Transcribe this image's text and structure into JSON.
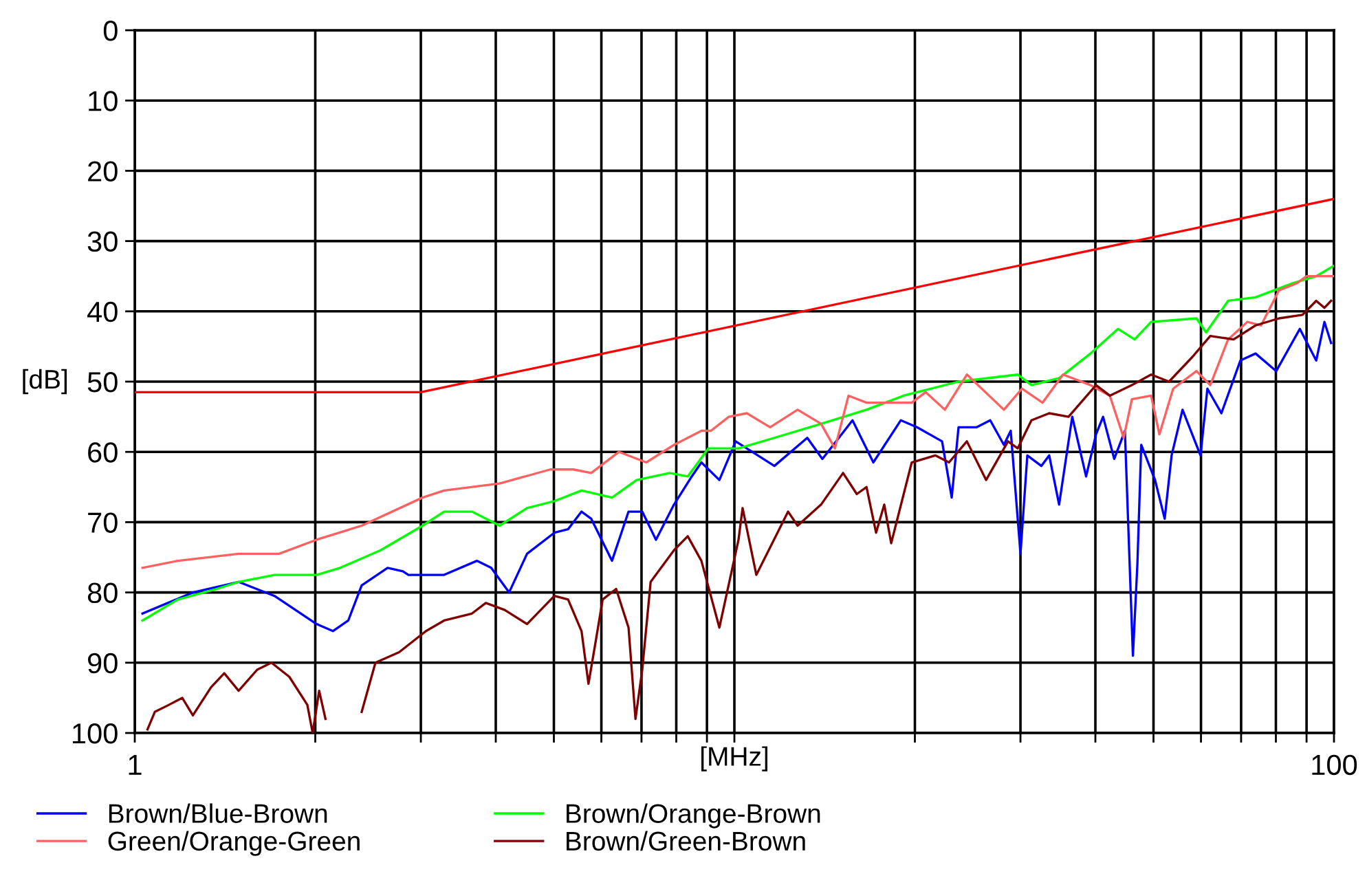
{
  "chart_data": {
    "type": "line",
    "xlabel": "[MHz]",
    "ylabel": "[dB]",
    "log": "x",
    "xlim": [
      1,
      100
    ],
    "ylim": [
      100,
      0
    ],
    "xticks": [
      {
        "value": 1,
        "label": "1"
      },
      {
        "value": 2,
        "label": null
      },
      {
        "value": 3,
        "label": null
      },
      {
        "value": 4,
        "label": null
      },
      {
        "value": 5,
        "label": null
      },
      {
        "value": 6,
        "label": null
      },
      {
        "value": 7,
        "label": null
      },
      {
        "value": 8,
        "label": null
      },
      {
        "value": 9,
        "label": null
      },
      {
        "value": 10,
        "label": null
      },
      {
        "value": 20,
        "label": null
      },
      {
        "value": 30,
        "label": null
      },
      {
        "value": 40,
        "label": null
      },
      {
        "value": 50,
        "label": null
      },
      {
        "value": 60,
        "label": null
      },
      {
        "value": 70,
        "label": null
      },
      {
        "value": 80,
        "label": null
      },
      {
        "value": 90,
        "label": null
      },
      {
        "value": 100,
        "label": "100"
      }
    ],
    "yticks": [
      0,
      10,
      20,
      30,
      40,
      50,
      60,
      70,
      80,
      90,
      100
    ],
    "grid": true,
    "legend": "bottom",
    "line_style": "solid",
    "marker": "none",
    "series": [
      {
        "name": "Brown/Blue-Brown",
        "color": "#0000ff",
        "x": [
          1.03,
          1.25,
          1.49,
          1.71,
          2.01,
          2.14,
          2.27,
          2.39,
          2.64,
          2.8,
          2.86,
          3.28,
          3.72,
          3.93,
          4.21,
          4.51,
          5.01,
          5.28,
          5.56,
          5.77,
          6.25,
          6.66,
          7.02,
          7.4,
          7.93,
          8.49,
          8.81,
          9.44,
          10.05,
          11.66,
          13.23,
          14.02,
          15.74,
          17.05,
          18.95,
          20.18,
          22.2,
          23.04,
          23.65,
          25.33,
          26.71,
          28.15,
          28.9,
          30.0,
          30.8,
          32.5,
          33.5,
          34.8,
          36.6,
          38.6,
          40.1,
          41.2,
          43.0,
          44.8,
          46.2,
          47.0,
          47.7,
          50.3,
          52.2,
          53.6,
          55.9,
          59.9,
          61.5,
          64.9,
          69.8,
          74.0,
          80.1,
          87.7,
          93.4,
          96.4,
          98.9
        ],
        "values": [
          83,
          80,
          78.5,
          80.5,
          84.5,
          85.5,
          84,
          79,
          76.5,
          77,
          77.5,
          77.5,
          75.5,
          76.5,
          80,
          74.5,
          71.5,
          71,
          68.5,
          69.5,
          75.5,
          68.5,
          68.5,
          72.5,
          67.5,
          63.5,
          61.5,
          64,
          58.5,
          62,
          58,
          61,
          55.5,
          61.5,
          55.5,
          56.5,
          58.5,
          66.5,
          56.5,
          56.5,
          55.5,
          59,
          57,
          74.5,
          60.5,
          62,
          60.5,
          67.5,
          55,
          63.5,
          57.5,
          55,
          61,
          57,
          89,
          76,
          59,
          64,
          69.5,
          60.5,
          54,
          60.5,
          51,
          54.5,
          47,
          46,
          48.5,
          42.5,
          47,
          41.5,
          44.5
        ]
      },
      {
        "name": "Brown/Orange-Brown",
        "color": "#00ff00",
        "x": [
          1.03,
          1.18,
          1.37,
          1.49,
          1.71,
          2.01,
          2.2,
          2.57,
          3.02,
          3.28,
          3.65,
          4.06,
          4.51,
          5.01,
          5.56,
          6.25,
          6.87,
          7.8,
          8.36,
          9.05,
          9.44,
          10.16,
          11.66,
          13.95,
          16.61,
          19.15,
          23.65,
          29.69,
          31.29,
          34.8,
          39.26,
          43.64,
          46.5,
          49.55,
          58.97,
          61.2,
          66.59,
          74.0,
          85.37,
          93.4,
          100
        ],
        "values": [
          84,
          81,
          79.5,
          78.5,
          77.5,
          77.5,
          76.5,
          74,
          70.5,
          68.5,
          68.5,
          70.5,
          68,
          67,
          65.5,
          66.5,
          64,
          63,
          63.5,
          59.5,
          59.5,
          59.5,
          58,
          56,
          54,
          52,
          50,
          49,
          50.5,
          49.5,
          46,
          42.5,
          44,
          41.5,
          41,
          43,
          38.5,
          38,
          36,
          35,
          33.5
        ]
      },
      {
        "name": "Green/Orange-Green",
        "color": "#ff6060",
        "x": [
          1.03,
          1.18,
          1.49,
          1.74,
          2.01,
          2.39,
          3.02,
          3.28,
          4.06,
          4.93,
          5.39,
          5.77,
          6.42,
          7.13,
          7.93,
          8.81,
          9.14,
          9.79,
          10.49,
          11.47,
          12.75,
          13.95,
          14.71,
          15.5,
          16.61,
          19.76,
          20.84,
          22.44,
          24.42,
          28.15,
          30.17,
          32.65,
          35.33,
          39.26,
          42.28,
          44.59,
          46.02,
          49.55,
          51.14,
          53.92,
          58.97,
          62.18,
          66.59,
          71.7,
          75.56,
          80.97,
          86.74,
          89.99,
          100
        ],
        "values": [
          76.5,
          75.5,
          74.5,
          74.5,
          72.5,
          70.5,
          66.5,
          65.5,
          64.5,
          62.5,
          62.5,
          63,
          60,
          61.5,
          59,
          57,
          57,
          55,
          54.5,
          56.5,
          54,
          56,
          59.5,
          52,
          53,
          53,
          51.5,
          54,
          49,
          54,
          51,
          53,
          49,
          50.5,
          52,
          58,
          52.5,
          52,
          57.5,
          51,
          48.5,
          50.5,
          44,
          41.5,
          42,
          37,
          36,
          35,
          35
        ]
      },
      {
        "name": "Brown/Green-Brown",
        "color": "#800000",
        "x": [
          1.05,
          1.08,
          1.14,
          1.2,
          1.25,
          1.34,
          1.41,
          1.49,
          1.6,
          1.69,
          1.81,
          1.94,
          1.98,
          2.03,
          2.08,
          2.2,
          2.39,
          2.52,
          2.76,
          3.06,
          3.28,
          3.65,
          3.85,
          4.14,
          4.51,
          5.01,
          5.28,
          5.56,
          5.71,
          5.87,
          6.03,
          6.35,
          6.66,
          6.84,
          7.02,
          7.25,
          7.93,
          8.36,
          8.81,
          9.44,
          10.16,
          10.32,
          10.88,
          12.29,
          12.75,
          13.95,
          15.18,
          16.0,
          16.61,
          17.23,
          17.78,
          18.26,
          19.76,
          21.63,
          22.8,
          24.42,
          26.29,
          28.6,
          29.69,
          31.29,
          33.5,
          36.08,
          40.1,
          42.28,
          46.02,
          49.55,
          53.07,
          58.04,
          62.18,
          68.0,
          74.0,
          80.97,
          88.6,
          93.4,
          96.4,
          98.9
        ],
        "values": [
          99.5,
          97,
          96,
          95,
          97.5,
          93.5,
          91.5,
          94,
          91,
          90,
          92,
          96,
          100,
          94,
          98,
          null,
          97,
          90,
          88.5,
          85.5,
          84,
          83,
          81.5,
          82.5,
          84.5,
          80.5,
          81,
          85.5,
          93,
          87,
          81,
          79.5,
          85,
          98,
          91,
          78.5,
          74,
          72,
          75.5,
          85,
          72.5,
          68,
          77.5,
          68.5,
          70.5,
          67.5,
          63,
          66,
          65,
          71.5,
          67.5,
          73,
          61.5,
          60.5,
          61.5,
          58.5,
          64,
          58.5,
          59.5,
          55.5,
          54.5,
          55,
          50.5,
          52,
          50.5,
          49,
          50,
          46.5,
          43.5,
          44,
          42,
          41,
          40.5,
          38.5,
          39.5,
          38.5
        ]
      },
      {
        "color": "#ff0000",
        "x": [
          1,
          3,
          100
        ],
        "values": [
          51.5,
          51.5,
          24
        ]
      }
    ]
  }
}
